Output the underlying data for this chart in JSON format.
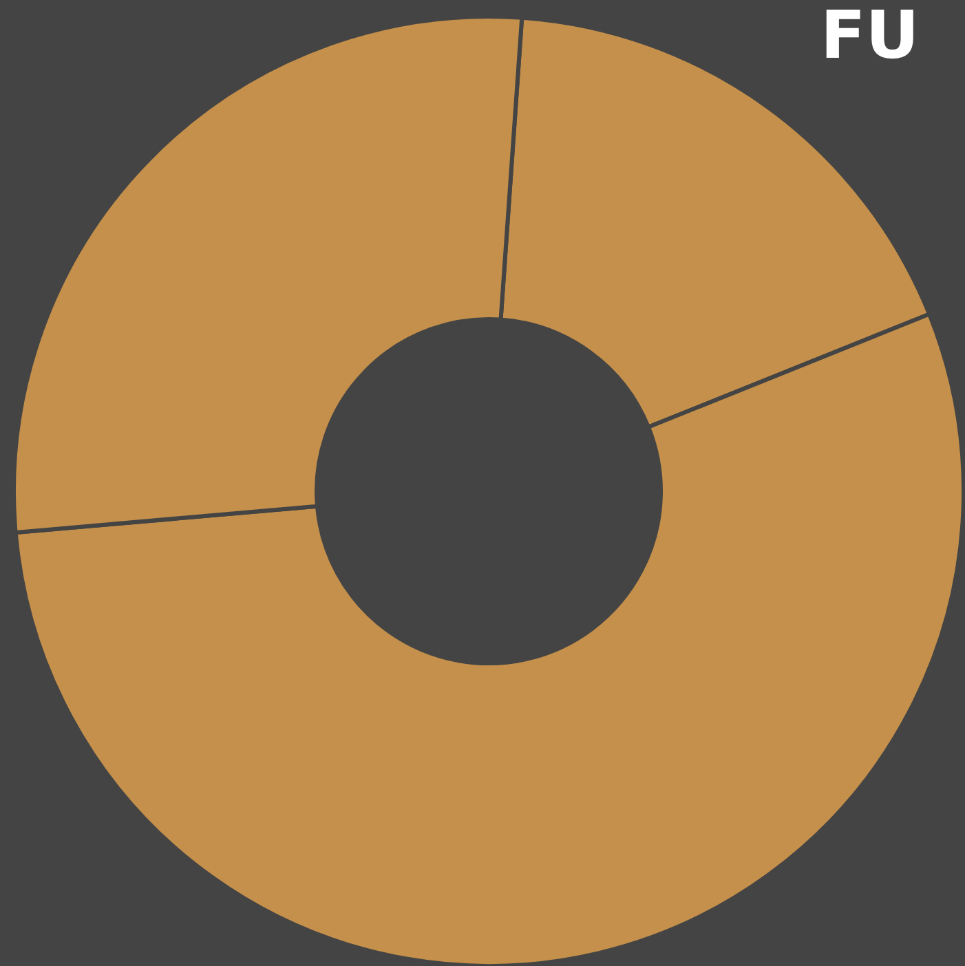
{
  "chart_data": {
    "type": "donut",
    "title": "FU",
    "categories": [
      null,
      null,
      null
    ],
    "values": [
      17.8,
      54.7,
      27.5
    ],
    "colors": [
      "#c4904b",
      "#c4904b",
      "#c4904b"
    ]
  }
}
